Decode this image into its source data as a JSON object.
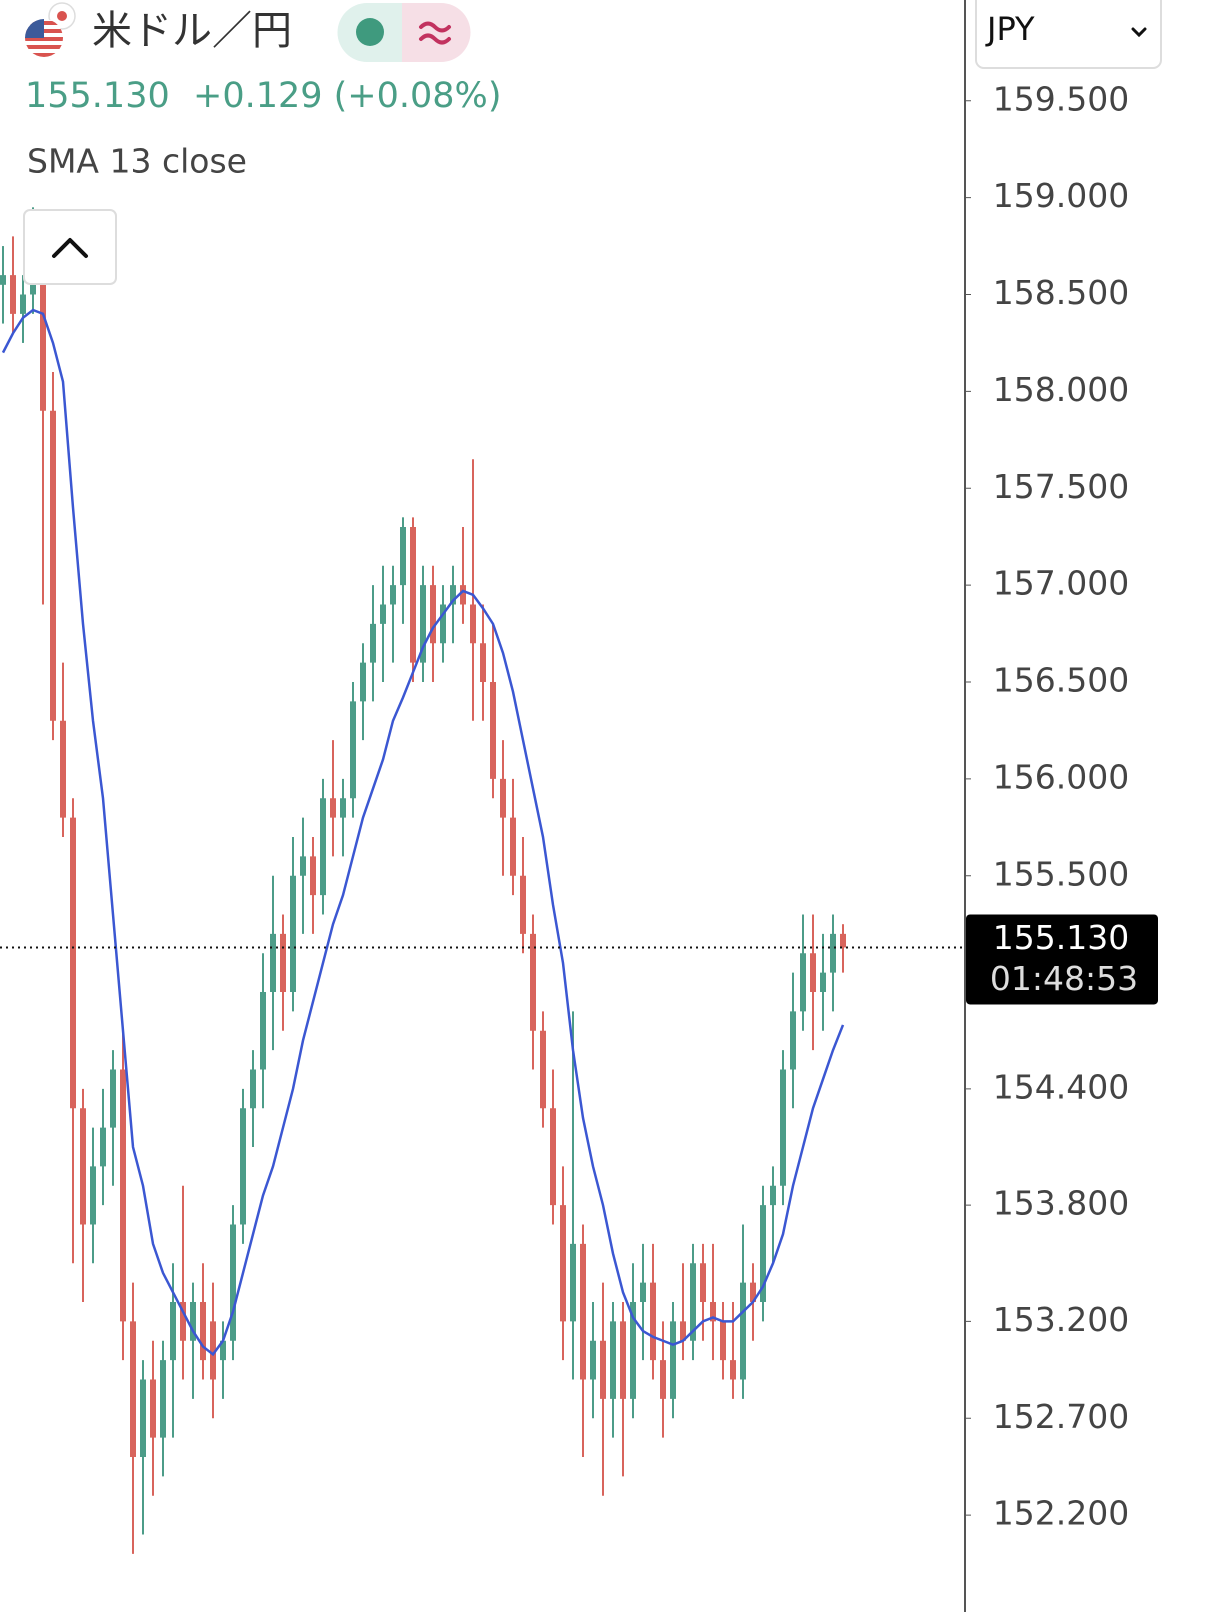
{
  "chart_data": {
    "type": "candlestick",
    "title": "米ドル／円",
    "last_price": {
      "value": 155.13,
      "label": "155.130"
    },
    "change": "+0.129 (+0.08%)",
    "currency": "JPY",
    "countdown": "01:48:53",
    "up_color": "#4c9c88",
    "down_color": "#d8645c",
    "ylim": [
      151.7,
      160.02
    ],
    "yticks": [
      {
        "value": 159.5,
        "label": "159.500"
      },
      {
        "value": 159.0,
        "label": "159.000"
      },
      {
        "value": 158.5,
        "label": "158.500"
      },
      {
        "value": 158.0,
        "label": "158.000"
      },
      {
        "value": 157.5,
        "label": "157.500"
      },
      {
        "value": 157.0,
        "label": "157.000"
      },
      {
        "value": 156.5,
        "label": "156.500"
      },
      {
        "value": 156.0,
        "label": "156.000"
      },
      {
        "value": 155.5,
        "label": "155.500"
      },
      {
        "value": 154.4,
        "label": "154.400"
      },
      {
        "value": 153.8,
        "label": "153.800"
      },
      {
        "value": 153.2,
        "label": "153.200"
      },
      {
        "value": 152.7,
        "label": "152.700"
      },
      {
        "value": 152.2,
        "label": "152.200"
      }
    ],
    "open": [
      158.55,
      158.6,
      158.4,
      158.5,
      158.7,
      157.9,
      156.3,
      155.8,
      154.3,
      153.7,
      154.0,
      154.2,
      154.5,
      153.2,
      152.5,
      152.9,
      152.6,
      153.0,
      153.3,
      153.1,
      153.3,
      153.2,
      153.0,
      153.1,
      153.7,
      154.3,
      154.5,
      154.9,
      155.2,
      154.9,
      155.5,
      155.6,
      155.4,
      155.9,
      155.8,
      155.9,
      156.4,
      156.6,
      156.8,
      156.9,
      157.0,
      157.3,
      156.6,
      157.0,
      156.7,
      156.9,
      157.0,
      156.9,
      156.7,
      156.5,
      156.0,
      155.8,
      155.5,
      155.2,
      154.7,
      154.3,
      153.8,
      153.2,
      153.6,
      152.9,
      153.1,
      152.8,
      153.2,
      152.8,
      153.3,
      153.4,
      153.0,
      152.8,
      153.2,
      153.1,
      153.5,
      153.3,
      153.2,
      153.0,
      152.9,
      153.4,
      153.3,
      153.8,
      153.9,
      154.5,
      154.8,
      155.1,
      154.9,
      155.0,
      155.2
    ],
    "high": [
      158.75,
      158.8,
      158.6,
      158.95,
      158.85,
      158.1,
      156.6,
      155.9,
      154.4,
      154.2,
      154.4,
      154.6,
      154.7,
      153.4,
      153.0,
      153.1,
      153.1,
      153.5,
      153.9,
      153.4,
      153.5,
      153.4,
      153.2,
      153.8,
      154.4,
      154.6,
      155.1,
      155.5,
      155.3,
      155.7,
      155.8,
      155.7,
      156.0,
      156.2,
      156.0,
      156.5,
      156.7,
      157.0,
      157.1,
      157.1,
      157.35,
      157.35,
      157.1,
      157.1,
      157.0,
      157.1,
      157.3,
      157.65,
      156.9,
      156.8,
      156.2,
      156.0,
      155.7,
      155.3,
      154.8,
      154.5,
      154.0,
      154.8,
      153.7,
      153.3,
      153.4,
      153.3,
      153.3,
      153.5,
      153.6,
      153.6,
      153.2,
      153.3,
      153.5,
      153.6,
      153.6,
      153.6,
      153.3,
      153.3,
      153.7,
      153.5,
      153.9,
      154.0,
      154.6,
      155.0,
      155.3,
      155.3,
      155.2,
      155.3,
      155.25
    ],
    "low": [
      158.35,
      158.3,
      158.25,
      158.4,
      156.9,
      156.2,
      155.7,
      153.5,
      153.3,
      153.5,
      153.8,
      153.9,
      153.0,
      152.0,
      152.1,
      152.3,
      152.4,
      152.6,
      152.9,
      152.8,
      152.9,
      152.7,
      152.8,
      153.0,
      153.6,
      154.1,
      154.3,
      154.6,
      154.7,
      154.8,
      155.2,
      155.2,
      155.3,
      155.6,
      155.6,
      155.8,
      156.2,
      156.4,
      156.5,
      156.6,
      156.8,
      156.5,
      156.5,
      156.5,
      156.6,
      156.7,
      156.8,
      156.3,
      156.3,
      155.9,
      155.5,
      155.4,
      155.1,
      154.5,
      154.2,
      153.7,
      153.0,
      152.9,
      152.5,
      152.7,
      152.3,
      152.6,
      152.4,
      152.7,
      153.0,
      152.9,
      152.6,
      152.7,
      153.0,
      153.0,
      153.1,
      153.0,
      152.9,
      152.8,
      152.8,
      153.1,
      153.2,
      153.5,
      153.8,
      154.3,
      154.7,
      154.6,
      154.7,
      154.8,
      155.0
    ],
    "close": [
      158.6,
      158.4,
      158.5,
      158.7,
      157.9,
      156.3,
      155.8,
      154.3,
      153.7,
      154.0,
      154.2,
      154.5,
      153.2,
      152.5,
      152.9,
      152.6,
      153.0,
      153.3,
      153.1,
      153.3,
      153.0,
      152.9,
      153.1,
      153.7,
      154.3,
      154.5,
      154.9,
      155.2,
      154.9,
      155.5,
      155.6,
      155.4,
      155.9,
      155.8,
      155.9,
      156.4,
      156.6,
      156.8,
      156.9,
      157.0,
      157.3,
      156.6,
      157.0,
      156.7,
      156.9,
      157.0,
      156.9,
      156.7,
      156.5,
      156.0,
      155.8,
      155.5,
      155.2,
      154.7,
      154.3,
      153.8,
      153.2,
      153.6,
      152.9,
      153.1,
      152.8,
      153.2,
      152.8,
      153.3,
      153.4,
      153.0,
      152.8,
      153.2,
      153.1,
      153.5,
      153.3,
      153.2,
      153.0,
      152.9,
      153.4,
      153.3,
      153.8,
      153.9,
      154.5,
      154.8,
      155.1,
      154.9,
      155.0,
      155.2,
      155.13
    ],
    "sma": {
      "label": "SMA 13 close",
      "color": "#3b57d2",
      "values": [
        158.2,
        158.3,
        158.38,
        158.42,
        158.4,
        158.25,
        158.05,
        157.4,
        156.8,
        156.3,
        155.9,
        155.3,
        154.7,
        154.1,
        153.9,
        153.6,
        153.45,
        153.35,
        153.25,
        153.15,
        153.07,
        153.03,
        153.1,
        153.25,
        153.45,
        153.65,
        153.85,
        154.0,
        154.2,
        154.4,
        154.65,
        154.85,
        155.05,
        155.25,
        155.4,
        155.6,
        155.8,
        155.95,
        156.1,
        156.3,
        156.42,
        156.55,
        156.68,
        156.78,
        156.85,
        156.92,
        156.97,
        156.95,
        156.88,
        156.8,
        156.65,
        156.45,
        156.2,
        155.95,
        155.7,
        155.35,
        155.05,
        154.6,
        154.25,
        154.0,
        153.8,
        153.55,
        153.35,
        153.22,
        153.15,
        153.12,
        153.1,
        153.08,
        153.1,
        153.15,
        153.2,
        153.22,
        153.2,
        153.2,
        153.25,
        153.3,
        153.38,
        153.5,
        153.65,
        153.9,
        154.1,
        154.3,
        154.45,
        154.6,
        154.73
      ]
    }
  }
}
